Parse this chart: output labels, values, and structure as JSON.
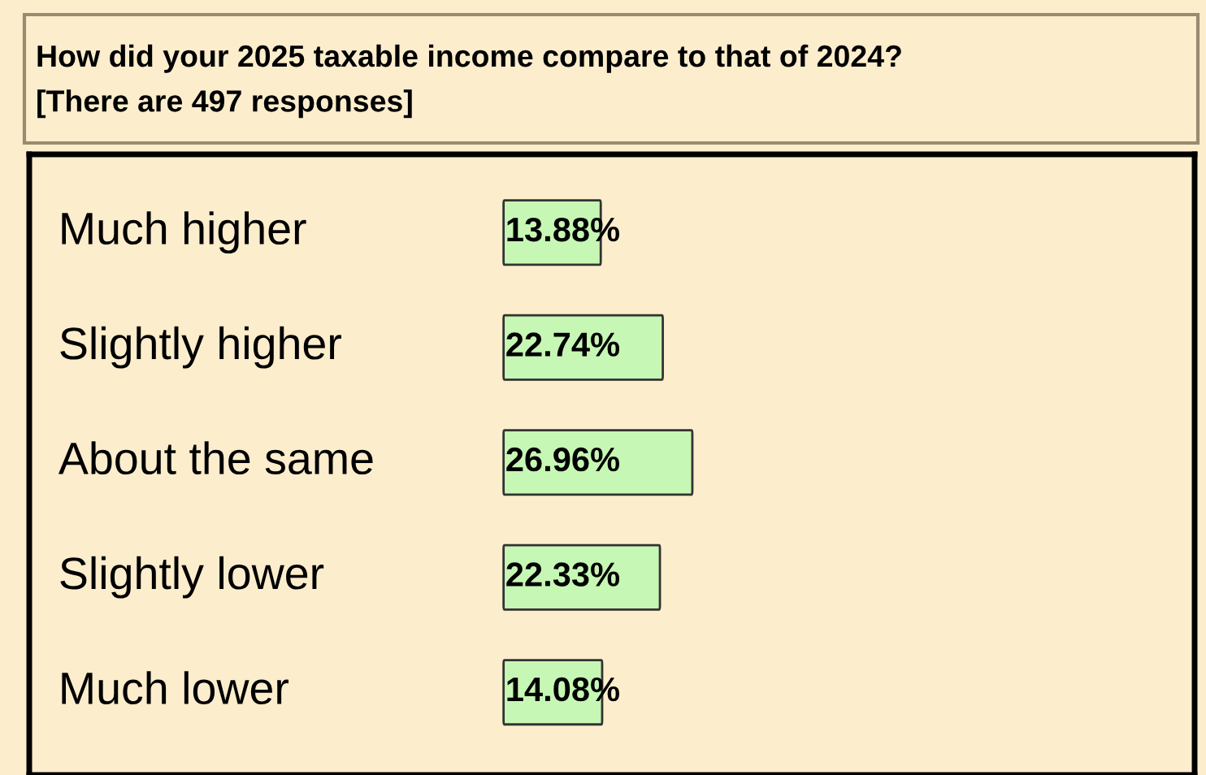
{
  "chart_data": {
    "type": "bar",
    "orientation": "horizontal",
    "title": "How did your 2025 taxable income compare to that of 2024?\n[There are 497 responses]",
    "categories": [
      "Much higher",
      "Slightly higher",
      "About the same",
      "Slightly lower",
      "Much lower"
    ],
    "values": [
      13.88,
      22.74,
      26.96,
      22.33,
      14.08
    ],
    "value_labels": [
      "13.88%",
      "22.74%",
      "26.96%",
      "22.33%",
      "14.08%"
    ],
    "color": "#c6f7b4"
  }
}
